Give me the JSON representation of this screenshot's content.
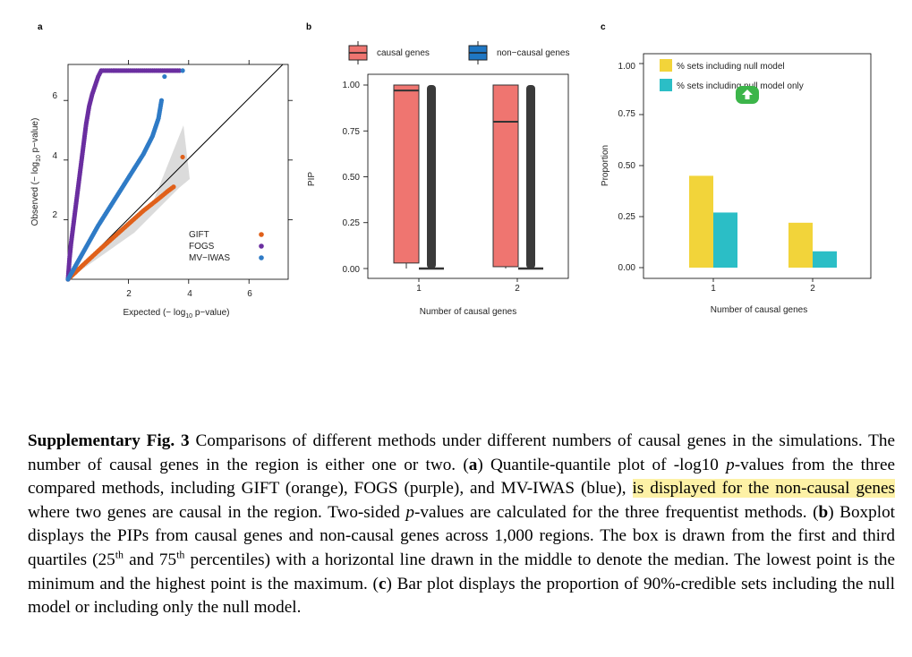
{
  "panel_a": {
    "letter": "a",
    "xlabel_pre": "Expected (− log",
    "xlabel_sub": "10",
    "xlabel_post": " p−value)",
    "ylabel_pre": "Observed (− log",
    "ylabel_sub": "10",
    "ylabel_post": " p−value)",
    "x_ticks": [
      "2",
      "4",
      "6"
    ],
    "y_ticks": [
      "2",
      "4",
      "6"
    ],
    "legend": [
      "GIFT",
      "FOGS",
      "MV−IWAS"
    ]
  },
  "panel_b": {
    "letter": "b",
    "xlabel": "Number of causal genes",
    "ylabel": "PIP",
    "x_ticks": [
      "1",
      "2"
    ],
    "y_ticks": [
      "0.00",
      "0.25",
      "0.50",
      "0.75",
      "1.00"
    ],
    "legend": [
      "causal genes",
      "non−causal genes"
    ]
  },
  "panel_c": {
    "letter": "c",
    "xlabel": "Number of causal genes",
    "ylabel": "Proportion",
    "x_ticks": [
      "1",
      "2"
    ],
    "y_ticks": [
      "0.00",
      "0.25",
      "0.50",
      "0.75",
      "1.00"
    ],
    "legend": [
      "% sets including null model",
      "% sets including null model only"
    ]
  },
  "colors": {
    "gift": "#e0601a",
    "fogs": "#6a2ea0",
    "mviwas": "#2f7bc6",
    "causal": "#ef7570",
    "noncausal": "#1f77c4",
    "bar1": "#f2d43a",
    "bar2": "#2bbec6",
    "overlay": "#3cb54a"
  },
  "chart_data": [
    {
      "type": "scatter",
      "xlabel": "Expected (− log10 p−value)",
      "ylabel": "Observed (− log10 p−value)",
      "xlim": [
        0,
        7
      ],
      "ylim": [
        0,
        7.2
      ],
      "reference_line": "y = x",
      "series": [
        {
          "name": "GIFT",
          "x": [
            0,
            0.5,
            1,
            1.5,
            2,
            2.5,
            3,
            3.3,
            3.5,
            3.8
          ],
          "y": [
            0,
            0.48,
            0.95,
            1.4,
            1.85,
            2.3,
            2.7,
            2.95,
            3.1,
            4.1
          ]
        },
        {
          "name": "FOGS",
          "x": [
            0,
            0.05,
            0.1,
            0.2,
            0.3,
            0.4,
            0.5,
            0.6,
            0.7,
            0.8,
            0.9,
            1.0,
            1.1,
            1.5,
            2.0,
            3.0,
            3.7
          ],
          "y": [
            0,
            0.7,
            1.2,
            2.0,
            2.8,
            3.6,
            4.4,
            5.2,
            5.8,
            6.2,
            6.5,
            6.8,
            7.0,
            7.0,
            7.0,
            7.0,
            7.0
          ]
        },
        {
          "name": "MV−IWAS",
          "x": [
            0,
            0.5,
            1,
            1.5,
            2,
            2.5,
            2.8,
            3.0,
            3.1,
            3.2,
            3.8
          ],
          "y": [
            0,
            0.9,
            1.8,
            2.6,
            3.4,
            4.2,
            4.8,
            5.4,
            6.0,
            6.8,
            7.0
          ]
        }
      ]
    },
    {
      "type": "box",
      "xlabel": "Number of causal genes",
      "ylabel": "PIP",
      "categories": [
        "1",
        "2"
      ],
      "ylim": [
        0,
        1.05
      ],
      "series": [
        {
          "name": "causal genes",
          "boxes": [
            {
              "q1": 0.03,
              "median": 0.97,
              "q3": 1.0,
              "min": 0.0,
              "max": 1.0
            },
            {
              "q1": 0.01,
              "median": 0.8,
              "q3": 1.0,
              "min": 0.0,
              "max": 1.0
            }
          ]
        },
        {
          "name": "non−causal genes",
          "boxes": [
            {
              "q1": 0.0,
              "median": 0.0,
              "q3": 0.0,
              "min": 0.0,
              "max": 1.0
            },
            {
              "q1": 0.0,
              "median": 0.0,
              "q3": 0.0,
              "min": 0.0,
              "max": 1.0
            }
          ]
        }
      ]
    },
    {
      "type": "bar",
      "xlabel": "Number of causal genes",
      "ylabel": "Proportion",
      "categories": [
        "1",
        "2"
      ],
      "ylim": [
        0,
        1.05
      ],
      "series": [
        {
          "name": "% sets including null model",
          "values": [
            0.45,
            0.22
          ]
        },
        {
          "name": "% sets including null model only",
          "values": [
            0.27,
            0.08
          ]
        }
      ]
    }
  ],
  "caption": {
    "title": "Supplementary Fig. 3",
    "s1": " Comparisons of different methods under different numbers of causal genes in the simulations. The number of causal genes in the region is either one or two. (",
    "a": "a",
    "s2": ") Quantile-quantile plot of -log10 ",
    "p1": "p",
    "s3": "-values from the three compared methods, including GIFT (orange), FOGS (purple), and MV-IWAS (blue), ",
    "highlight": "is displayed for the non-causal genes",
    "s4": " where two genes are causal in the region. Two-sided ",
    "p2": "p",
    "s5": "-values are calculated for the three frequentist methods. (",
    "b": "b",
    "s6": ") Boxplot displays the PIPs from causal genes and non-causal genes across 1,000 regions. The box is drawn from the first and third quartiles (25",
    "th1": "th",
    "s7": " and 75",
    "th2": "th",
    "s8": " percentiles) with a horizontal line drawn in the middle to denote the median. The lowest point is the minimum and the highest point is the maximum. (",
    "c": "c",
    "s9": ") Bar plot displays the proportion of 90%-credible sets including the null model or including only the null model."
  }
}
